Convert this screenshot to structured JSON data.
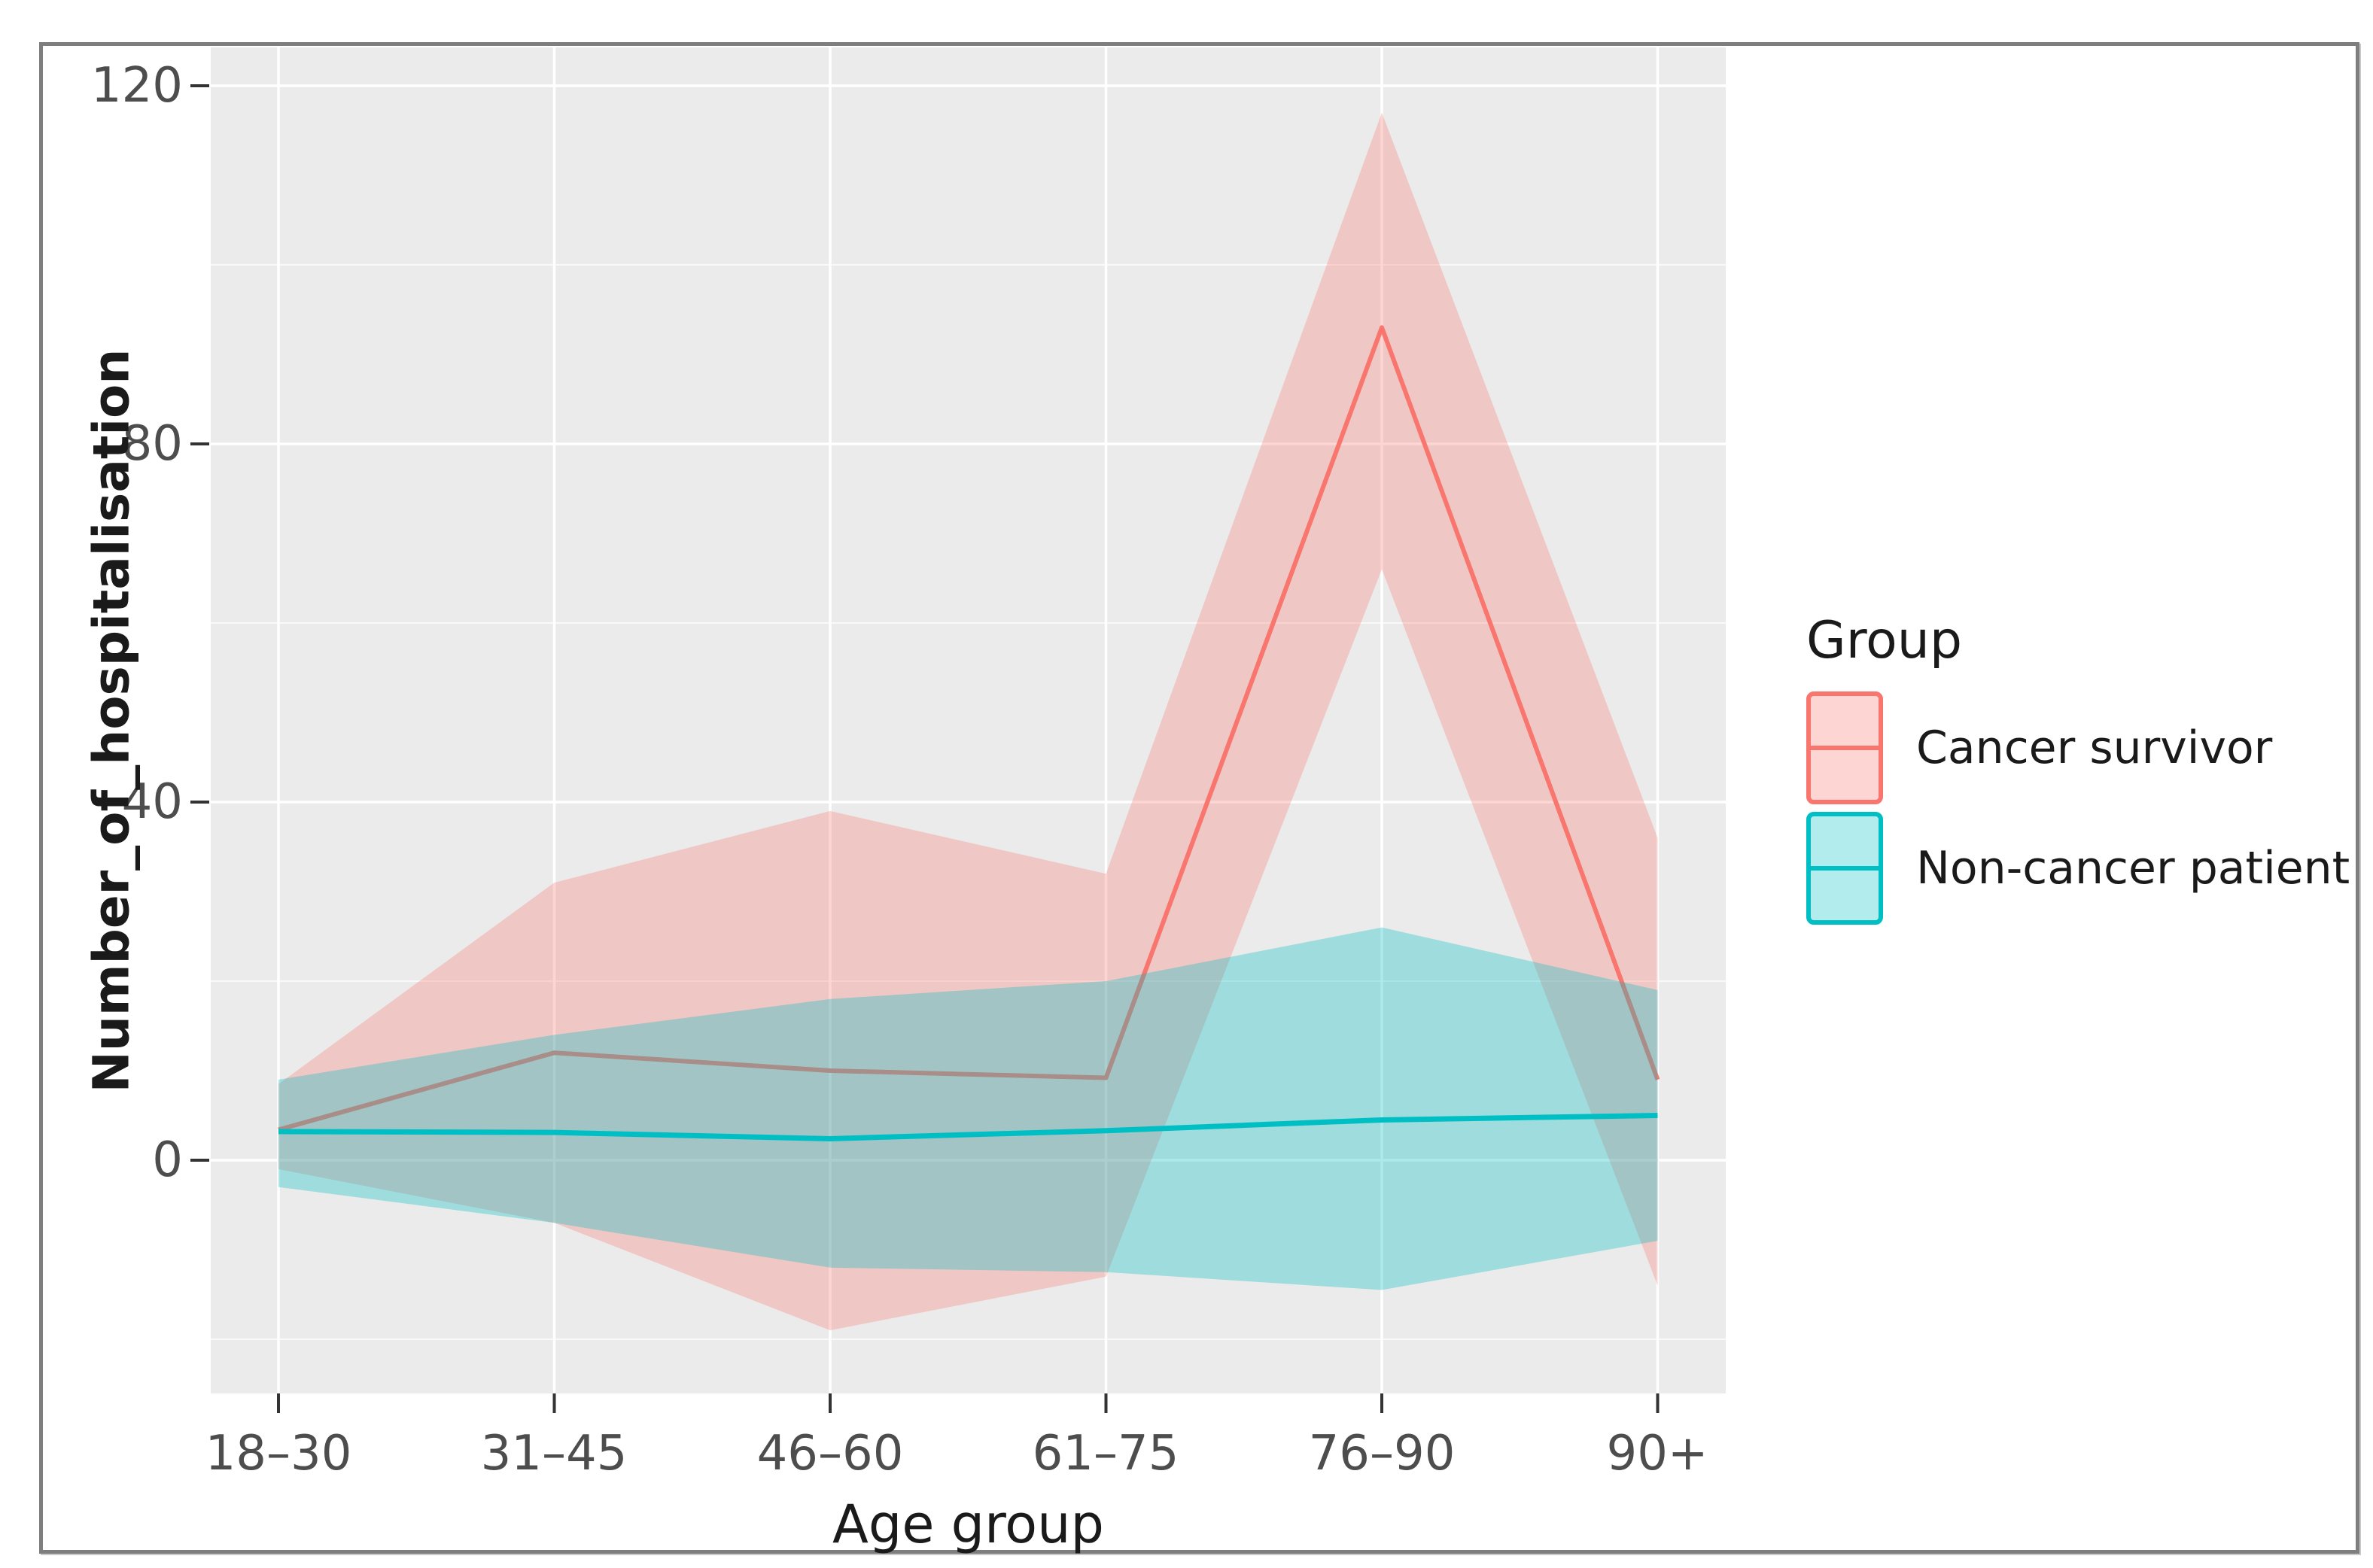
{
  "figure": {
    "background": "#ffffff",
    "border_color": "#7e7e7e",
    "panel_background": "#ebebeb",
    "gridline_color": "#ffffff",
    "tick_text_color": "#4d4d4d",
    "title_text_color": "#1a1a1a"
  },
  "chart_data": {
    "type": "line",
    "title": "",
    "xlabel": "Age group",
    "ylabel": "Number_of_hospitalisation",
    "categories": [
      "18–30",
      "31–45",
      "46–60",
      "61–75",
      "76–90",
      "90+"
    ],
    "y_ticks": [
      0,
      40,
      80,
      120
    ],
    "y_tick_labels": [
      "0",
      "40",
      "80",
      "120"
    ],
    "y_minor_ticks": [
      -20,
      20,
      60,
      100
    ],
    "ylim": [
      -26,
      124
    ],
    "grid": "on",
    "legend": {
      "title": "Group",
      "position": "right",
      "entries": [
        "Cancer survivor",
        "Non-cancer patient"
      ]
    },
    "series": [
      {
        "name": "Cancer survivor",
        "color": "#F8766D",
        "ribbon_color": "rgba(248,118,109,0.30)",
        "values": [
          3.4,
          12,
          10,
          9.2,
          93,
          9
        ],
        "ribbon_upper": [
          8.5,
          31,
          39,
          32,
          117,
          36
        ],
        "ribbon_lower": [
          -1,
          -7,
          -19,
          -13,
          66,
          -14
        ]
      },
      {
        "name": "Non-cancer patient",
        "color": "#00BFC4",
        "ribbon_color": "rgba(0,191,196,0.32)",
        "values": [
          3.2,
          3.1,
          2.4,
          3.3,
          4.5,
          5
        ],
        "ribbon_upper": [
          9,
          14,
          18,
          20,
          26,
          19
        ],
        "ribbon_lower": [
          -3,
          -7,
          -12,
          -12.5,
          -14.5,
          -9
        ]
      }
    ]
  }
}
